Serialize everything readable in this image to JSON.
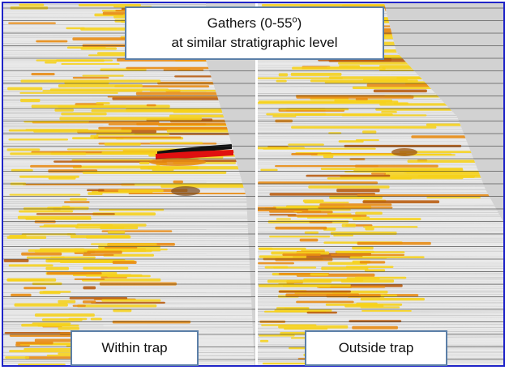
{
  "figure": {
    "title_line1_prefix": "Gathers (0-55",
    "title_degree": "o",
    "title_line1_suffix": ")",
    "title_line2": "at similar stratigraphic level",
    "left_panel_label": "Within trap",
    "right_panel_label": "Outside trap"
  },
  "colors": {
    "frame_border": "#1f24c8",
    "callout_border": "#5b7fa8",
    "background_grey": "#d2d2d2",
    "amplitude_yellow": "#f6d21a",
    "amplitude_orange": "#e88a10",
    "amplitude_red": "#e01010",
    "amplitude_black": "#111111",
    "divider": "#ffffff"
  }
}
